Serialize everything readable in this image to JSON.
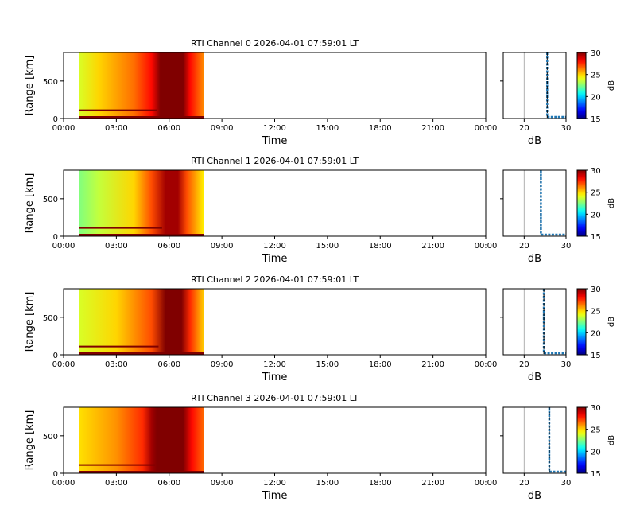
{
  "chart_data": [
    {
      "type": "heatmap",
      "title": "RTI Channel 0 2026-04-01 07:59:01 LT",
      "xlabel": "Time",
      "ylabel": "Range [km]",
      "xticks": [
        "00:00",
        "03:00",
        "06:00",
        "09:00",
        "12:00",
        "15:00",
        "18:00",
        "21:00",
        "00:00"
      ],
      "yticks": [
        "0",
        "500"
      ],
      "xlim_hours": [
        0,
        24
      ],
      "ylim_km": [
        0,
        880
      ],
      "data_time_span_hours": [
        0.86,
        8.0
      ],
      "time_profile_db": [
        [
          0.86,
          23.8
        ],
        [
          2,
          25
        ],
        [
          4,
          26.5
        ],
        [
          5,
          28
        ],
        [
          5.5,
          30
        ],
        [
          6.8,
          30
        ],
        [
          7.2,
          28
        ],
        [
          8,
          26
        ]
      ],
      "echo_layer_km": 110,
      "echo_layer_hours": [
        0.86,
        5.3
      ],
      "profile": {
        "xlabel": "dB",
        "xticks": [
          "20",
          "30"
        ],
        "xlim": [
          15,
          30
        ],
        "value_db": 25.5
      },
      "colorbar": {
        "label": "dB",
        "ticks": [
          "15",
          "20",
          "25",
          "30"
        ],
        "range": [
          15,
          30
        ],
        "colormap": "jet"
      }
    },
    {
      "type": "heatmap",
      "title": "RTI Channel 1 2026-04-01 07:59:01 LT",
      "xlabel": "Time",
      "ylabel": "Range [km]",
      "xticks": [
        "00:00",
        "03:00",
        "06:00",
        "09:00",
        "12:00",
        "15:00",
        "18:00",
        "21:00",
        "00:00"
      ],
      "yticks": [
        "0",
        "500"
      ],
      "xlim_hours": [
        0,
        24
      ],
      "ylim_km": [
        0,
        880
      ],
      "data_time_span_hours": [
        0.86,
        8.0
      ],
      "time_profile_db": [
        [
          0.86,
          22.5
        ],
        [
          2,
          23.5
        ],
        [
          4,
          25
        ],
        [
          5,
          27
        ],
        [
          5.8,
          29.5
        ],
        [
          6.5,
          29.5
        ],
        [
          7,
          27
        ],
        [
          8,
          24.5
        ]
      ],
      "echo_layer_km": 110,
      "echo_layer_hours": [
        0.86,
        5.6
      ],
      "profile": {
        "xlabel": "dB",
        "xticks": [
          "20",
          "30"
        ],
        "xlim": [
          15,
          30
        ],
        "value_db": 24.0
      },
      "colorbar": {
        "label": "dB",
        "ticks": [
          "15",
          "20",
          "25",
          "30"
        ],
        "range": [
          15,
          30
        ],
        "colormap": "jet"
      }
    },
    {
      "type": "heatmap",
      "title": "RTI Channel 2 2026-04-01 07:59:01 LT",
      "xlabel": "Time",
      "ylabel": "Range [km]",
      "xticks": [
        "00:00",
        "03:00",
        "06:00",
        "09:00",
        "12:00",
        "15:00",
        "18:00",
        "21:00",
        "00:00"
      ],
      "yticks": [
        "0",
        "500"
      ],
      "xlim_hours": [
        0,
        24
      ],
      "ylim_km": [
        0,
        880
      ],
      "data_time_span_hours": [
        0.86,
        8.0
      ],
      "time_profile_db": [
        [
          0.86,
          23.8
        ],
        [
          3,
          25
        ],
        [
          5,
          27
        ],
        [
          5.8,
          30
        ],
        [
          6.7,
          30
        ],
        [
          7.2,
          27.5
        ],
        [
          8,
          25
        ]
      ],
      "echo_layer_km": 110,
      "echo_layer_hours": [
        0.86,
        5.4
      ],
      "profile": {
        "xlabel": "dB",
        "xticks": [
          "20",
          "30"
        ],
        "xlim": [
          15,
          30
        ],
        "value_db": 24.7
      },
      "colorbar": {
        "label": "dB",
        "ticks": [
          "15",
          "20",
          "25",
          "30"
        ],
        "range": [
          15,
          30
        ],
        "colormap": "jet"
      }
    },
    {
      "type": "heatmap",
      "title": "RTI Channel 3 2026-04-01 07:59:01 LT",
      "xlabel": "Time",
      "ylabel": "Range [km]",
      "xticks": [
        "00:00",
        "03:00",
        "06:00",
        "09:00",
        "12:00",
        "15:00",
        "18:00",
        "21:00",
        "00:00"
      ],
      "yticks": [
        "0",
        "500"
      ],
      "xlim_hours": [
        0,
        24
      ],
      "ylim_km": [
        0,
        880
      ],
      "data_time_span_hours": [
        0.86,
        8.0
      ],
      "time_profile_db": [
        [
          0.86,
          24.8
        ],
        [
          3,
          26
        ],
        [
          4.5,
          27.5
        ],
        [
          5,
          29.5
        ],
        [
          5.3,
          30
        ],
        [
          6.8,
          30
        ],
        [
          7.3,
          28
        ],
        [
          8,
          26.5
        ]
      ],
      "echo_layer_km": 110,
      "echo_layer_hours": [
        0.86,
        5.2
      ],
      "profile": {
        "xlabel": "dB",
        "xticks": [
          "20",
          "30"
        ],
        "xlim": [
          15,
          30
        ],
        "value_db": 26.0
      },
      "colorbar": {
        "label": "dB",
        "ticks": [
          "15",
          "20",
          "25",
          "30"
        ],
        "range": [
          15,
          30
        ],
        "colormap": "jet"
      }
    }
  ]
}
